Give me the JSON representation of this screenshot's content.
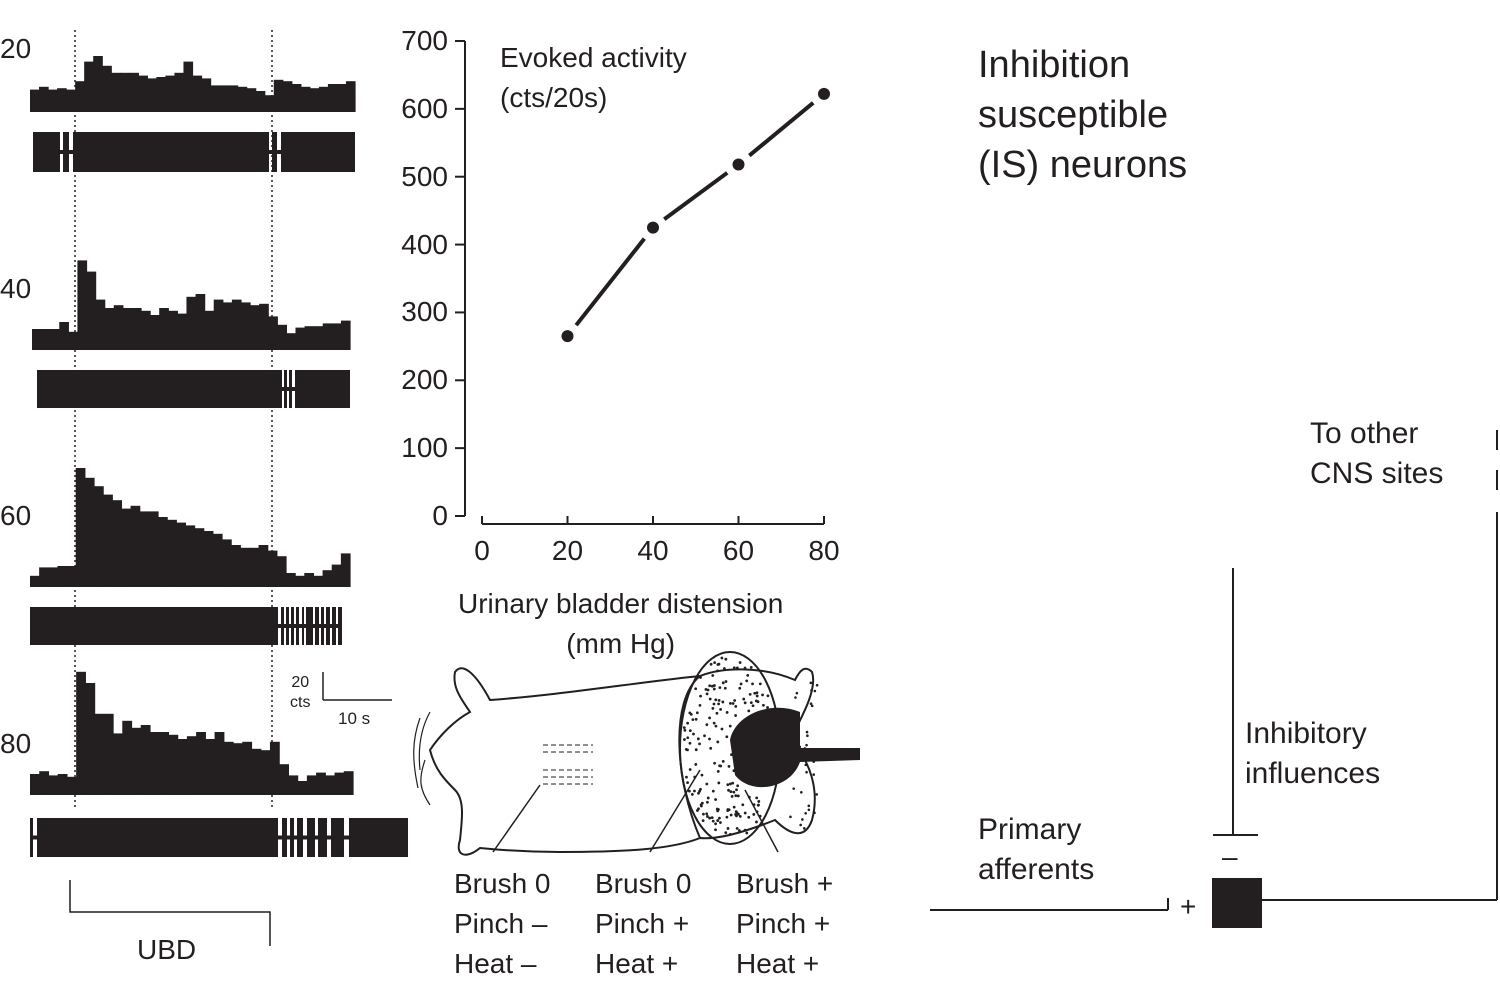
{
  "chart_data": [
    {
      "type": "line",
      "title": "Evoked activity\n(cts/20s)",
      "xlabel": "Urinary bladder distension\n(mm Hg)",
      "ylabel": "",
      "x": [
        20,
        40,
        60,
        80
      ],
      "y": [
        265,
        425,
        518,
        622
      ],
      "xlim": [
        0,
        80
      ],
      "ylim": [
        0,
        700
      ],
      "xticks": [
        "0",
        "20",
        "40",
        "60",
        "80"
      ],
      "yticks": [
        "0",
        "100",
        "200",
        "300",
        "400",
        "500",
        "600",
        "700"
      ],
      "grid": false,
      "marker": "filled-circle",
      "color": "#231f20"
    },
    {
      "type": "bar",
      "subtype": "peristimulus-time-histograms",
      "unit": "cts",
      "rows": [
        {
          "label": "20",
          "values": [
            16,
            18,
            16,
            17,
            16,
            22,
            36,
            40,
            33,
            28,
            28,
            28,
            26,
            24,
            25,
            26,
            28,
            36,
            26,
            24,
            19,
            19,
            19,
            18,
            17,
            15,
            12,
            23,
            22,
            20,
            18,
            17,
            18,
            20,
            20,
            22
          ]
        },
        {
          "label": "40",
          "values": [
            15,
            15,
            15,
            20,
            13,
            64,
            56,
            36,
            30,
            32,
            30,
            30,
            28,
            25,
            30,
            28,
            26,
            38,
            40,
            28,
            36,
            34,
            36,
            34,
            32,
            33,
            24,
            18,
            12,
            16,
            17,
            17,
            19,
            19,
            21
          ]
        },
        {
          "label": "60",
          "values": [
            8,
            14,
            14,
            15,
            15,
            85,
            78,
            72,
            66,
            62,
            56,
            58,
            54,
            54,
            50,
            48,
            46,
            44,
            42,
            40,
            38,
            34,
            30,
            28,
            28,
            30,
            26,
            22,
            10,
            8,
            10,
            8,
            12,
            16,
            24
          ]
        },
        {
          "label": "80",
          "values": [
            15,
            17,
            14,
            15,
            13,
            88,
            80,
            58,
            58,
            44,
            53,
            48,
            50,
            45,
            45,
            43,
            40,
            42,
            45,
            40,
            45,
            38,
            37,
            38,
            33,
            32,
            38,
            22,
            14,
            10,
            14,
            16,
            14,
            16,
            17
          ]
        }
      ],
      "scale_bar": {
        "y_label": "20\ncts",
        "x_label": "10 s"
      },
      "stimulus_label": "UBD"
    }
  ],
  "receptive_fields": [
    {
      "brush": "Brush 0",
      "pinch": "Pinch –",
      "heat": "Heat –"
    },
    {
      "brush": "Brush 0",
      "pinch": "Pinch +",
      "heat": "Heat +"
    },
    {
      "brush": "Brush +",
      "pinch": "Pinch +",
      "heat": "Heat +"
    }
  ],
  "circuit": {
    "title": "Inhibition\nsusceptible\n(IS) neurons",
    "output_label": "To other\nCNS sites",
    "inhibitory_label": "Inhibitory\ninfluences",
    "afferent_label": "Primary\nafferents",
    "plus_sign": "+",
    "minus_sign": "–"
  }
}
